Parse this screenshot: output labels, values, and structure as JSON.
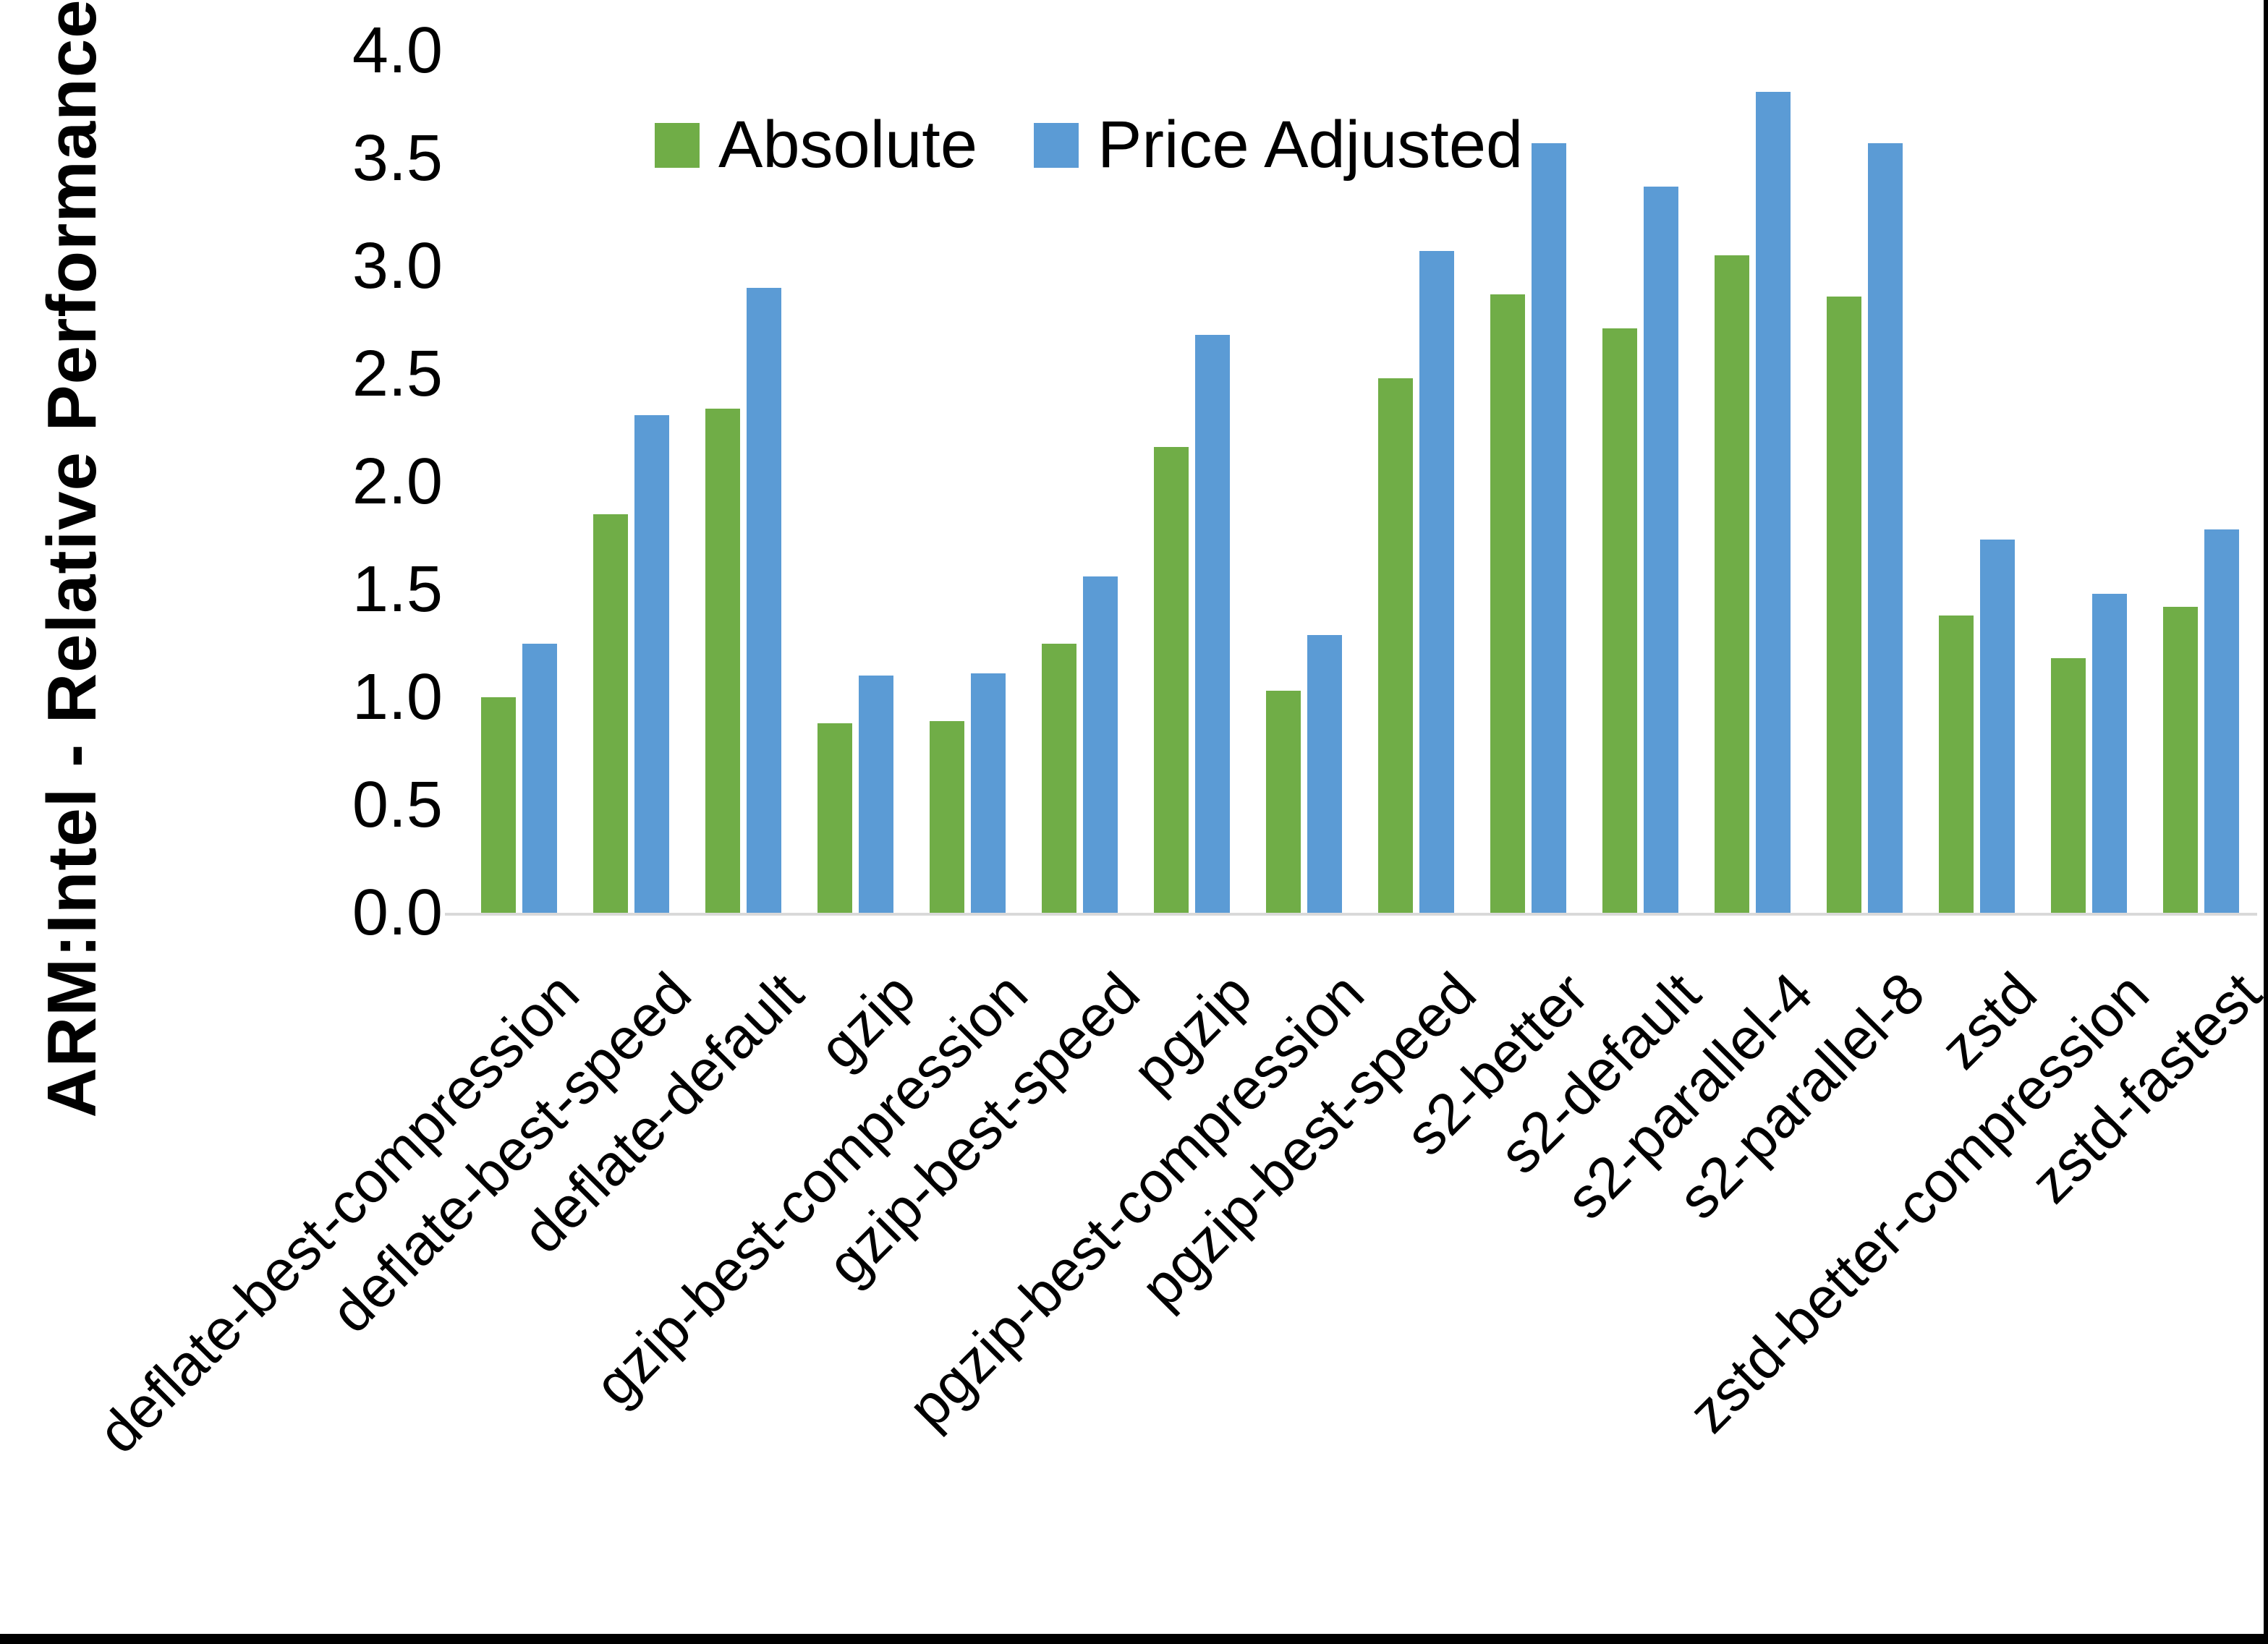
{
  "chart_data": {
    "type": "bar",
    "title": "",
    "xlabel": "",
    "ylabel": "ARM:Intel - Relative Performance",
    "ylim": [
      0.0,
      4.0
    ],
    "y_ticks": [
      "0.0",
      "0.5",
      "1.0",
      "1.5",
      "2.0",
      "2.5",
      "3.0",
      "3.5",
      "4.0"
    ],
    "grid": false,
    "legend_position": "top-center",
    "background_color": "#ffffff",
    "axis_line_color": "#d9d9d9",
    "text_color": "#000000",
    "categories": [
      "deflate-best-compression",
      "deflate-best-speed",
      "deflate-default",
      "gzip",
      "gzip-best-compression",
      "gzip-best-speed",
      "pgzip",
      "pgzip-best-compression",
      "pgzip-best-speed",
      "s2-better",
      "s2-default",
      "s2-parallel-4",
      "s2-parallel-8",
      "zstd",
      "zstd-better-compression",
      "zstd-fastest"
    ],
    "series": [
      {
        "name": "Absolute",
        "color": "#70AD47",
        "values": [
          1.0,
          1.85,
          2.34,
          0.88,
          0.89,
          1.25,
          2.16,
          1.03,
          2.48,
          2.87,
          2.71,
          3.05,
          2.86,
          1.38,
          1.18,
          1.42
        ]
      },
      {
        "name": "Price Adjusted",
        "color": "#5B9BD5",
        "values": [
          1.25,
          2.31,
          2.9,
          1.1,
          1.11,
          1.56,
          2.68,
          1.29,
          3.07,
          3.57,
          3.37,
          3.81,
          3.57,
          1.73,
          1.48,
          1.78
        ]
      }
    ]
  }
}
